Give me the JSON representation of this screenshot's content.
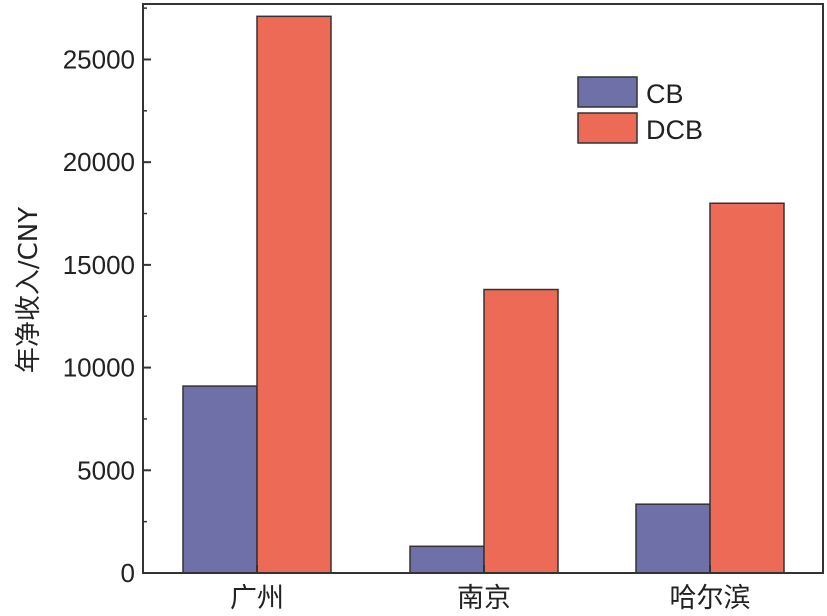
{
  "chart_data": {
    "type": "bar",
    "categories": [
      "广州",
      "南京",
      "哈尔滨"
    ],
    "series": [
      {
        "name": "CB",
        "values": [
          9100,
          1300,
          3350
        ],
        "color": "#7070a8"
      },
      {
        "name": "DCB",
        "values": [
          27100,
          13800,
          18000
        ],
        "color": "#ec6a56"
      }
    ],
    "title": "",
    "xlabel": "",
    "ylabel": "年净收入/CNY",
    "ylim": [
      0,
      27700
    ],
    "yticks": [
      0,
      5000,
      10000,
      15000,
      20000,
      25000
    ],
    "ytick_labels": [
      "0",
      "5000",
      "10000",
      "15000",
      "20000",
      "25000"
    ],
    "grid": false,
    "legend": "top-right"
  }
}
